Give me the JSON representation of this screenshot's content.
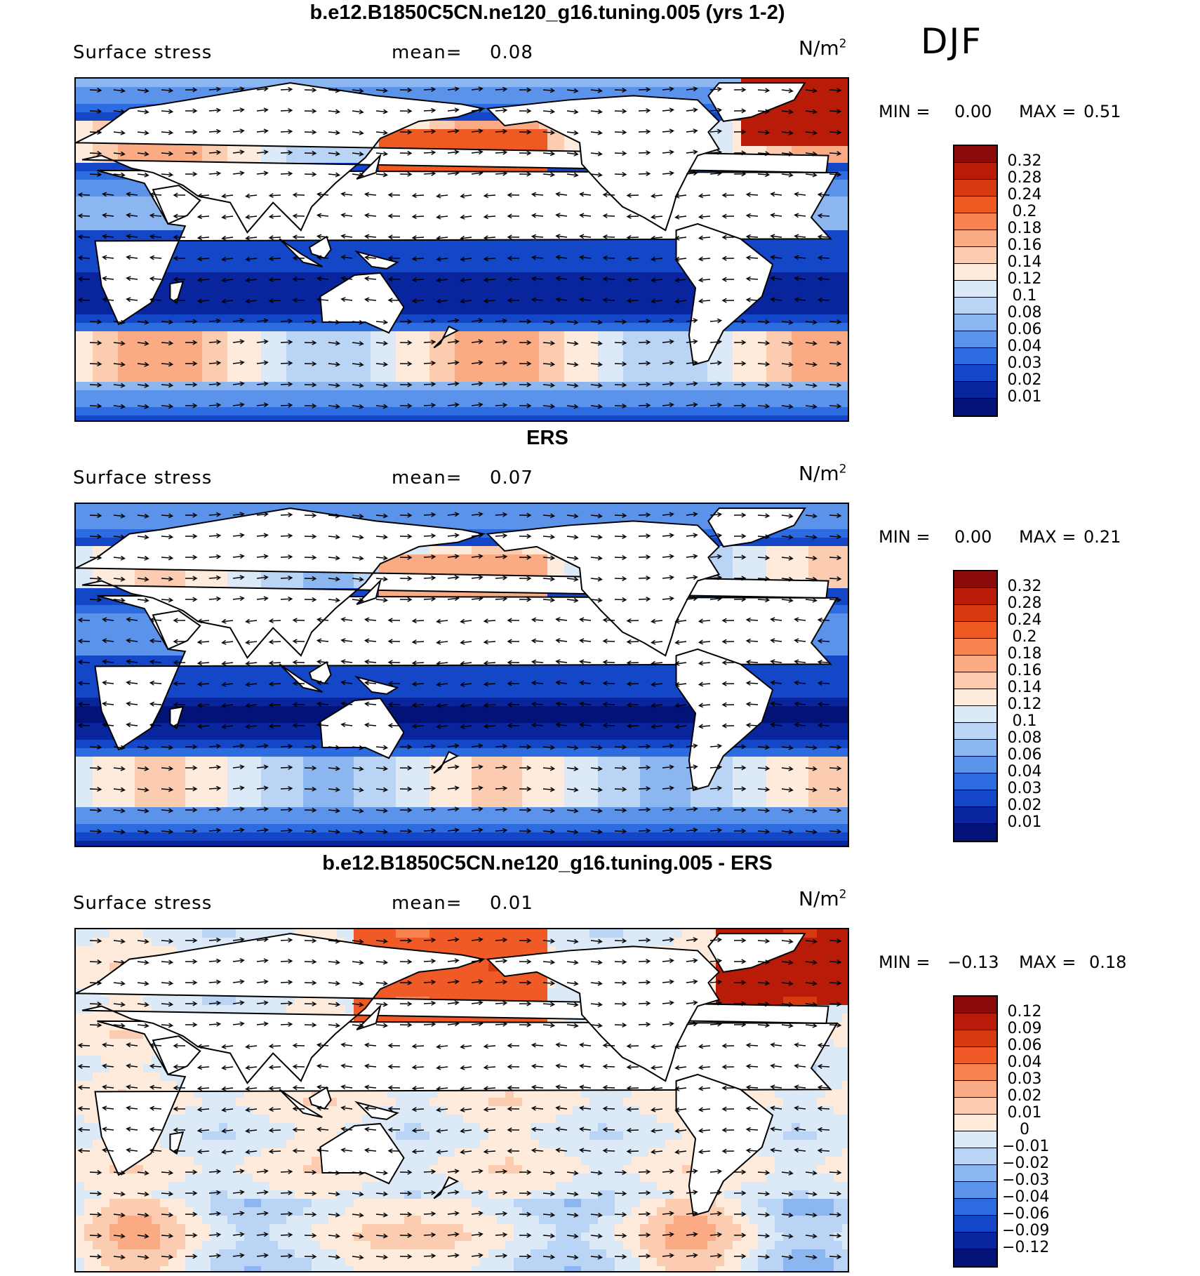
{
  "season": "DJF",
  "panels": [
    {
      "title": "b.e12.B1850C5CN.ne120_g16.tuning.005 (yrs 1-2)",
      "variable": "Surface stress",
      "mean_label": "mean=",
      "mean_value": "0.08",
      "units": "N/m",
      "units_exp": "2",
      "min_label": "MIN =",
      "min_value": "0.00",
      "max_label": "MAX =",
      "max_value": "0.51",
      "colorbar": {
        "levels": [
          "0.32",
          "0.28",
          "0.24",
          "0.2",
          "0.18",
          "0.16",
          "0.14",
          "0.12",
          "0.1",
          "0.08",
          "0.06",
          "0.04",
          "0.03",
          "0.02",
          "0.01"
        ],
        "colors": [
          "#8b0a0a",
          "#b81c08",
          "#d83a10",
          "#ee5a22",
          "#f78450",
          "#fbab84",
          "#fcccb0",
          "#feebdc",
          "#dceaf8",
          "#b9d4f4",
          "#8cb6f0",
          "#5b93ea",
          "#2d6ce0",
          "#1446c8",
          "#08259e",
          "#021276"
        ]
      },
      "field": "model"
    },
    {
      "title": "ERS",
      "variable": "Surface stress",
      "mean_label": "mean=",
      "mean_value": "0.07",
      "units": "N/m",
      "units_exp": "2",
      "min_label": "MIN =",
      "min_value": "0.00",
      "max_label": "MAX =",
      "max_value": "0.21",
      "colorbar": {
        "levels": [
          "0.32",
          "0.28",
          "0.24",
          "0.2",
          "0.18",
          "0.16",
          "0.14",
          "0.12",
          "0.1",
          "0.08",
          "0.06",
          "0.04",
          "0.03",
          "0.02",
          "0.01"
        ],
        "colors": [
          "#8b0a0a",
          "#b81c08",
          "#d83a10",
          "#ee5a22",
          "#f78450",
          "#fbab84",
          "#fcccb0",
          "#feebdc",
          "#dceaf8",
          "#b9d4f4",
          "#8cb6f0",
          "#5b93ea",
          "#2d6ce0",
          "#1446c8",
          "#08259e",
          "#021276"
        ]
      },
      "field": "obs"
    },
    {
      "title": "b.e12.B1850C5CN.ne120_g16.tuning.005 - ERS",
      "variable": "Surface stress",
      "mean_label": "mean=",
      "mean_value": "0.01",
      "units": "N/m",
      "units_exp": "2",
      "min_label": "MIN =",
      "min_value": "−0.13",
      "max_label": "MAX =",
      "max_value": "0.18",
      "colorbar": {
        "levels": [
          "0.12",
          "0.09",
          "0.06",
          "0.04",
          "0.03",
          "0.02",
          "0.01",
          "0",
          "−0.01",
          "−0.02",
          "−0.03",
          "−0.04",
          "−0.06",
          "−0.09",
          "−0.12"
        ],
        "colors": [
          "#8b0a0a",
          "#b81c08",
          "#d83a10",
          "#f05a26",
          "#f78450",
          "#fbab84",
          "#fcccb0",
          "#feebdc",
          "#dceaf8",
          "#b9d4f4",
          "#8cb6f0",
          "#5b93ea",
          "#2d6ce0",
          "#1446c8",
          "#08259e",
          "#021276"
        ]
      },
      "field": "diff"
    }
  ]
}
